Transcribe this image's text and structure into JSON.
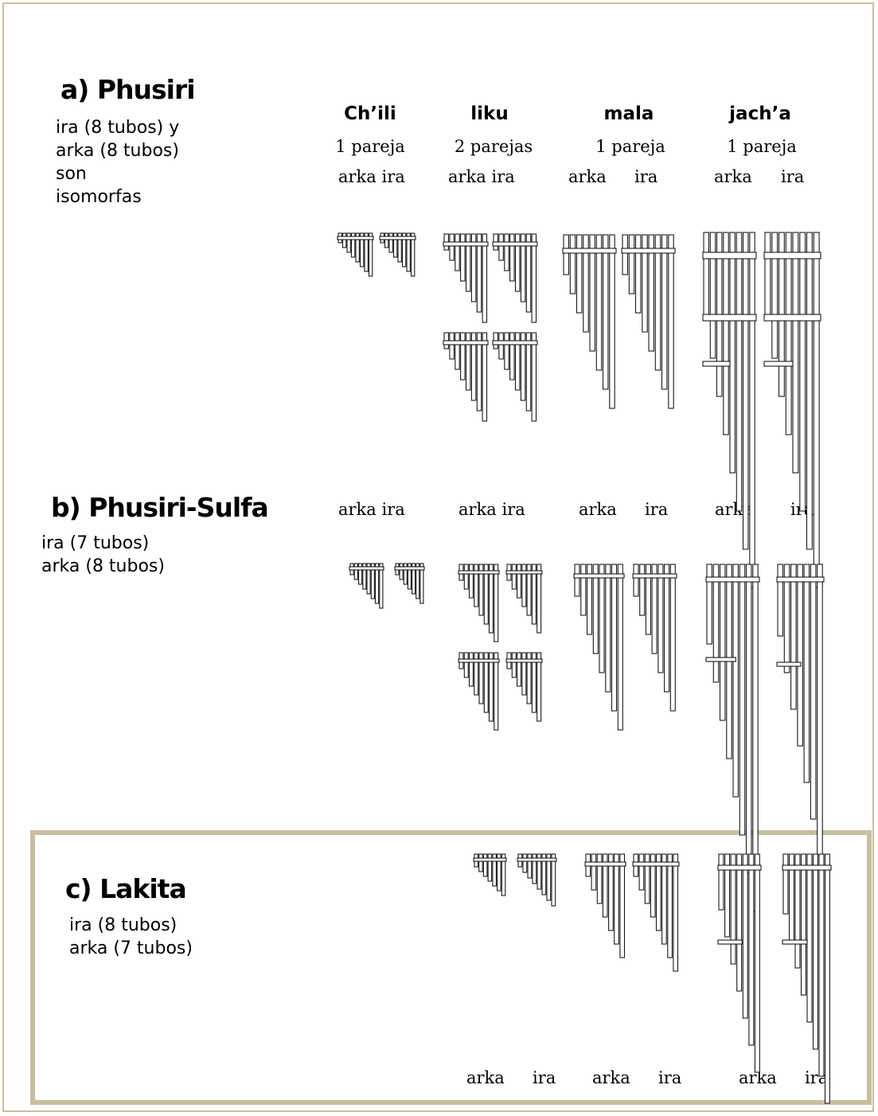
{
  "sections": {
    "a": {
      "title": "a) Phusiri",
      "desc": [
        "ira (8 tubos) y",
        "arka (8 tubos)",
        "son",
        "isomorfas"
      ]
    },
    "b": {
      "title": "b) Phusiri-Sulfa",
      "desc": [
        "ira (7 tubos)",
        "arka (8 tubos)"
      ]
    },
    "c": {
      "title": "c) Lakita",
      "desc": [
        "ira (8 tubos)",
        "arka (7 tubos)"
      ]
    }
  },
  "columns": [
    {
      "name": "Ch’ili",
      "pairs": "1 pareja"
    },
    {
      "name": "liku",
      "pairs": "2 parejas"
    },
    {
      "name": "mala",
      "pairs": "1 pareja"
    },
    {
      "name": "jach’a",
      "pairs": "1 pareja"
    }
  ],
  "labels": {
    "arka": "arka",
    "ira": "ira",
    "arka_ira": "arka ira"
  },
  "colors": {
    "frame": "#c8bf9e",
    "ink": "#1a1a1a",
    "background": "#ffffff"
  },
  "instrument_icon": "panpipe-icon"
}
